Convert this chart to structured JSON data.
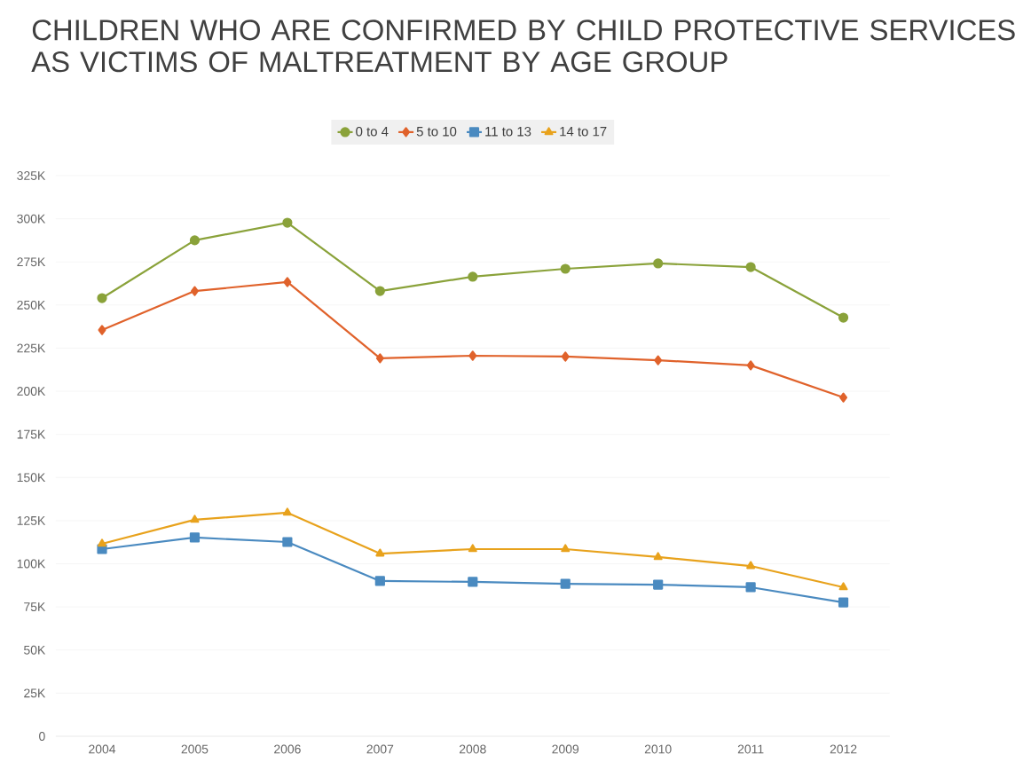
{
  "chart_data": {
    "type": "line",
    "title": "CHILDREN WHO ARE CONFIRMED BY CHILD PROTECTIVE SERVICES AS VICTIMS OF MALTREATMENT BY AGE GROUP",
    "categories": [
      "2004",
      "2005",
      "2006",
      "2007",
      "2008",
      "2009",
      "2010",
      "2011",
      "2012"
    ],
    "series": [
      {
        "name": "0 to 4",
        "color": "#8aa23a",
        "marker": "circle",
        "values": [
          254000,
          287500,
          297700,
          258100,
          266400,
          271000,
          274100,
          272000,
          242700
        ]
      },
      {
        "name": "5 to 10",
        "color": "#e0622b",
        "marker": "diamond",
        "values": [
          235500,
          258100,
          263300,
          219100,
          220600,
          220100,
          218000,
          215000,
          196400
        ]
      },
      {
        "name": "11 to 13",
        "color": "#4a8ac0",
        "marker": "square",
        "values": [
          108500,
          115200,
          112600,
          90000,
          89500,
          88400,
          87900,
          86400,
          77600
        ]
      },
      {
        "name": "14 to 17",
        "color": "#e8a21c",
        "marker": "triangle",
        "values": [
          111600,
          125500,
          129600,
          105900,
          108500,
          108500,
          103900,
          98700,
          86400
        ]
      }
    ],
    "ylim": [
      0,
      325000
    ],
    "yticks": [
      0,
      {
        "value": 25000,
        "label": "25K"
      },
      {
        "value": 50000,
        "label": "50K"
      },
      {
        "value": 75000,
        "label": "75K"
      },
      {
        "value": 100000,
        "label": "100K"
      },
      {
        "value": 125000,
        "label": "125K"
      },
      {
        "value": 150000,
        "label": "150K"
      },
      {
        "value": 175000,
        "label": "175K"
      },
      {
        "value": 200000,
        "label": "200K"
      },
      {
        "value": 225000,
        "label": "225K"
      },
      {
        "value": 250000,
        "label": "250K"
      },
      {
        "value": 275000,
        "label": "275K"
      },
      {
        "value": 300000,
        "label": "300K"
      },
      {
        "value": 325000,
        "label": "325K"
      }
    ],
    "grid": "y",
    "legend": "top",
    "line_style": "solid"
  }
}
